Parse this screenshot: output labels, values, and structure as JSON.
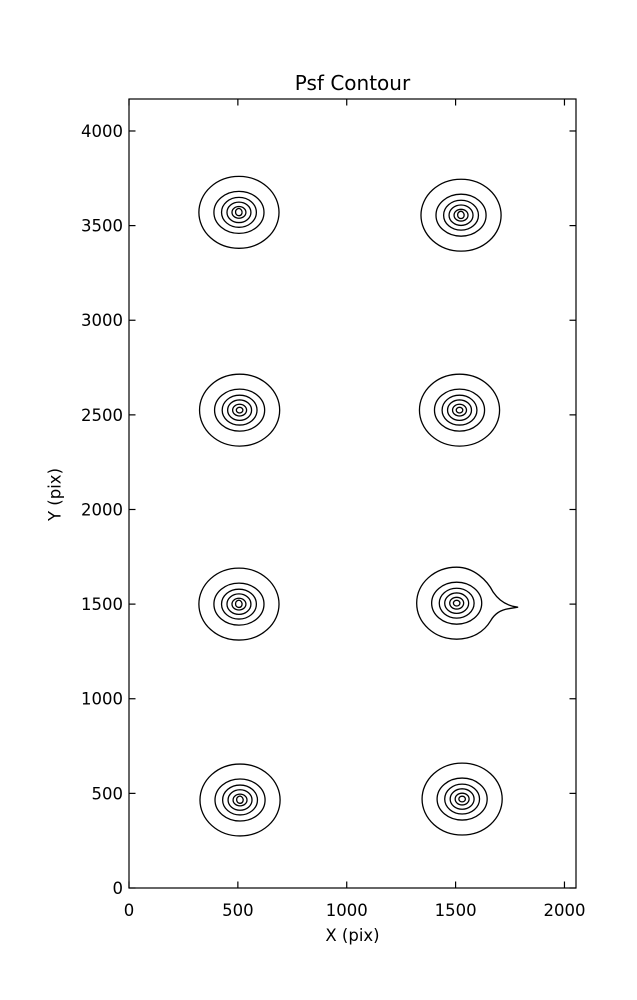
{
  "figure": {
    "background_color": "#ffffff",
    "line_color": "#000000"
  },
  "chart_data": {
    "type": "contour",
    "title": "Psf Contour",
    "xlabel": "X (pix)",
    "ylabel": "Y (pix)",
    "xlim": [
      0,
      2053
    ],
    "ylim": [
      0,
      4169
    ],
    "xticks": [
      0,
      500,
      1000,
      1500,
      2000
    ],
    "yticks": [
      0,
      500,
      1000,
      1500,
      2000,
      2500,
      3000,
      3500,
      4000
    ],
    "grid": false,
    "legend": false,
    "line_color": "#000000",
    "background_color": "#ffffff",
    "levels_per_psf": 6,
    "level_radii_x": [
      184,
      115,
      80,
      55,
      32
    ],
    "level_radii_y": [
      190,
      111,
      79,
      54,
      31
    ],
    "inner_radius": 15,
    "psf_blobs": [
      {
        "x": 505,
        "y": 3570,
        "inner": "triangle",
        "tail": false
      },
      {
        "x": 1525,
        "y": 3555,
        "inner": "triangle",
        "tail": false
      },
      {
        "x": 508,
        "y": 2525,
        "inner": "ellipse",
        "tail": false
      },
      {
        "x": 1518,
        "y": 2525,
        "inner": "ellipse",
        "tail": false
      },
      {
        "x": 505,
        "y": 1500,
        "inner": "triangle",
        "tail": false
      },
      {
        "x": 1505,
        "y": 1505,
        "inner": "ellipse",
        "tail": true
      },
      {
        "x": 510,
        "y": 465,
        "inner": "triangle",
        "tail": false
      },
      {
        "x": 1530,
        "y": 470,
        "inner": "ellipse",
        "tail": false
      }
    ]
  }
}
